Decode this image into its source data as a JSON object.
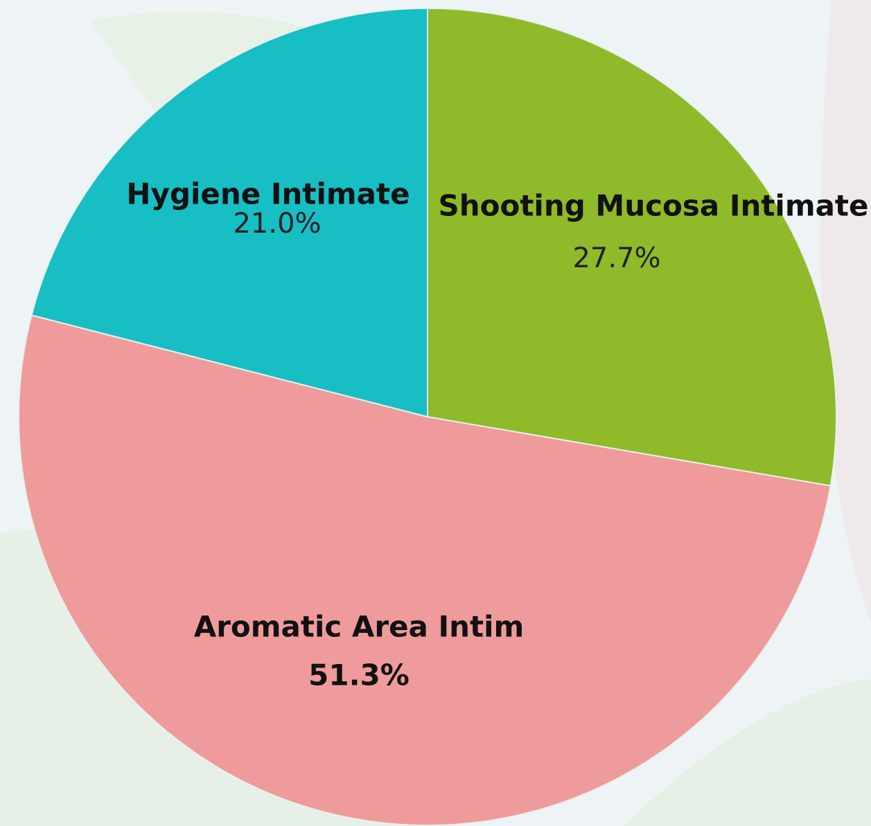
{
  "chart_data": {
    "type": "pie",
    "categories": [
      "Shooting Mucosa Intimate",
      "Aromatic Area Intim",
      "Hygiene Intimate"
    ],
    "values": [
      27.7,
      51.3,
      21.0
    ],
    "value_labels": [
      "27.7%",
      "51.3%",
      "21.0%"
    ],
    "colors": [
      "#8fba2a",
      "#ef9b9b",
      "#17bec4"
    ]
  }
}
